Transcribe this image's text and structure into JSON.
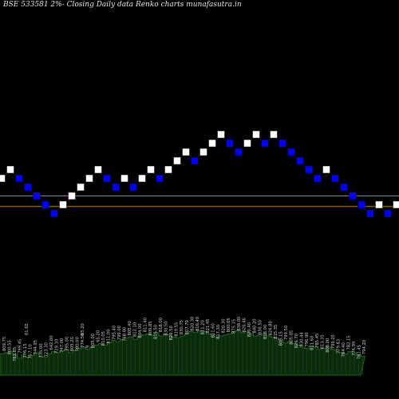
{
  "chart_data": {
    "type": "renko",
    "title": "BSE 533581 2%-  Closing Daily data  Renko  charts munafasutra.in",
    "colors": {
      "background": "#000000",
      "up_brick": "#ffffff",
      "down_brick": "#0000ff",
      "brick_outline": "#000000",
      "reference_line": "#c87800",
      "volume_fill": "#0b2a0b",
      "volume_edge": "#1f661f",
      "label_text": "#cfcfcf"
    },
    "brick_size_pct": 2,
    "bricks": [
      {
        "dir": "up",
        "level": 14
      },
      {
        "dir": "up",
        "level": 15
      },
      {
        "dir": "down",
        "level": 14
      },
      {
        "dir": "down",
        "level": 13
      },
      {
        "dir": "down",
        "level": 12
      },
      {
        "dir": "down",
        "level": 11
      },
      {
        "dir": "down",
        "level": 10
      },
      {
        "dir": "up",
        "level": 11
      },
      {
        "dir": "up",
        "level": 12
      },
      {
        "dir": "up",
        "level": 13
      },
      {
        "dir": "up",
        "level": 14
      },
      {
        "dir": "up",
        "level": 15
      },
      {
        "dir": "down",
        "level": 14
      },
      {
        "dir": "down",
        "level": 13
      },
      {
        "dir": "up",
        "level": 14
      },
      {
        "dir": "down",
        "level": 13
      },
      {
        "dir": "up",
        "level": 14
      },
      {
        "dir": "up",
        "level": 15
      },
      {
        "dir": "down",
        "level": 14
      },
      {
        "dir": "up",
        "level": 15
      },
      {
        "dir": "up",
        "level": 16
      },
      {
        "dir": "up",
        "level": 17
      },
      {
        "dir": "down",
        "level": 16
      },
      {
        "dir": "up",
        "level": 17
      },
      {
        "dir": "up",
        "level": 18
      },
      {
        "dir": "up",
        "level": 19
      },
      {
        "dir": "down",
        "level": 18
      },
      {
        "dir": "down",
        "level": 17
      },
      {
        "dir": "up",
        "level": 18
      },
      {
        "dir": "up",
        "level": 19
      },
      {
        "dir": "down",
        "level": 18
      },
      {
        "dir": "up",
        "level": 19
      },
      {
        "dir": "down",
        "level": 18
      },
      {
        "dir": "down",
        "level": 17
      },
      {
        "dir": "down",
        "level": 16
      },
      {
        "dir": "down",
        "level": 15
      },
      {
        "dir": "down",
        "level": 14
      },
      {
        "dir": "up",
        "level": 15
      },
      {
        "dir": "down",
        "level": 14
      },
      {
        "dir": "down",
        "level": 13
      },
      {
        "dir": "down",
        "level": 12
      },
      {
        "dir": "down",
        "level": 11
      },
      {
        "dir": "down",
        "level": 10
      },
      {
        "dir": "up",
        "level": 11
      },
      {
        "dir": "down",
        "level": 10
      },
      {
        "dir": "up",
        "level": 11
      },
      {
        "dir": "down",
        "level": 10
      },
      {
        "dir": "down",
        "level": 9
      },
      {
        "dir": "up",
        "level": 10
      },
      {
        "dir": "up",
        "level": 11
      },
      {
        "dir": "up",
        "level": 12
      }
    ],
    "reference_lines": [
      {
        "level": 12.5
      },
      {
        "level": 11.3
      }
    ],
    "volume_axis_max": 100,
    "volume": [
      38,
      40,
      42,
      38,
      30,
      36,
      32,
      35,
      40,
      34,
      32,
      38,
      42,
      40,
      44,
      46,
      40,
      44,
      48,
      50,
      46,
      50,
      54,
      56,
      54,
      58,
      62,
      60,
      64,
      66,
      68,
      64,
      70,
      72,
      74,
      72,
      76,
      70,
      74,
      72,
      68,
      66,
      70,
      74,
      78,
      76,
      80,
      78,
      74,
      72,
      68,
      70,
      72,
      74,
      78,
      80,
      76,
      78,
      74,
      70,
      72,
      74,
      70,
      68,
      66,
      62,
      58,
      60,
      56,
      54,
      50,
      48,
      52,
      50,
      46,
      48,
      50,
      46,
      44,
      40,
      38,
      42,
      40,
      36,
      34
    ],
    "price_labels": [
      "809.75",
      "800.55",
      "782.85",
      "799.45",
      "776.15",
      "757.10",
      "744.95",
      "735.00",
      "723.30",
      "642.00",
      "729.10",
      "747.00",
      "795.00",
      "805.20",
      "780.00",
      "774.50",
      "9",
      "805.00",
      "65.20",
      "810.05",
      "811.00",
      "795.40",
      "799.00",
      "768.00",
      "805.40",
      "812.10",
      "804.00",
      "811.40",
      "809.85",
      "815.50",
      "818.00",
      "830.50",
      "829.50",
      "819.55",
      "830.75",
      "807.70",
      "820.30",
      "816.40",
      "811.20",
      "821.45",
      "821.60",
      "817.30",
      "820.30",
      "800.05",
      "875.15",
      "838.00",
      "826.46",
      "820.40",
      "840.20",
      "836.50",
      "818.00",
      "826.80",
      "815.35",
      "805.15",
      "799.50",
      "805.05",
      "826.70",
      "830.44",
      "796.90",
      "811.60",
      "785.45",
      "813.35",
      "808.00",
      "799.25",
      "779.83",
      "784.40",
      "782.15",
      "776.99",
      "781.45",
      "794.20"
    ],
    "top_labels": [
      "61.65",
      "65.20"
    ]
  }
}
